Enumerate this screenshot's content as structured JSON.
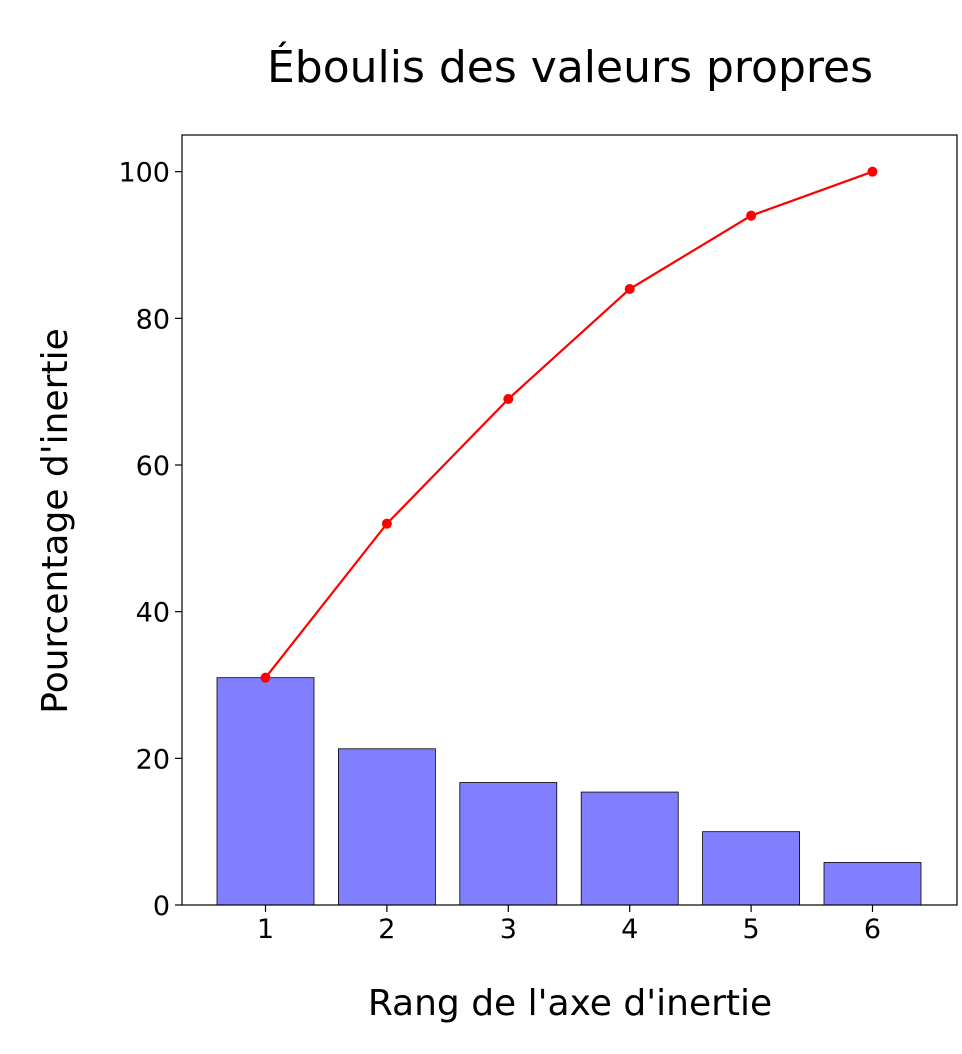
{
  "chart_data": {
    "type": "bar",
    "title": "Éboulis des valeurs propres",
    "xlabel": "Rang de l'axe d'inertie",
    "ylabel": "Pourcentage d'inertie",
    "categories": [
      "1",
      "2",
      "3",
      "4",
      "5",
      "6"
    ],
    "series": [
      {
        "type": "bar",
        "values": [
          31.0,
          21.3,
          16.7,
          15.4,
          10.0,
          5.8
        ]
      },
      {
        "type": "line",
        "values": [
          31,
          52,
          69,
          84,
          94,
          100
        ]
      }
    ],
    "yticks": [
      "0",
      "20",
      "40",
      "60",
      "80",
      "100"
    ],
    "ylim": [
      0,
      105
    ],
    "grid": false,
    "colors": {
      "bar_fill": "#8080ff",
      "bar_edge": "#000000",
      "line": "#ff0000"
    }
  }
}
